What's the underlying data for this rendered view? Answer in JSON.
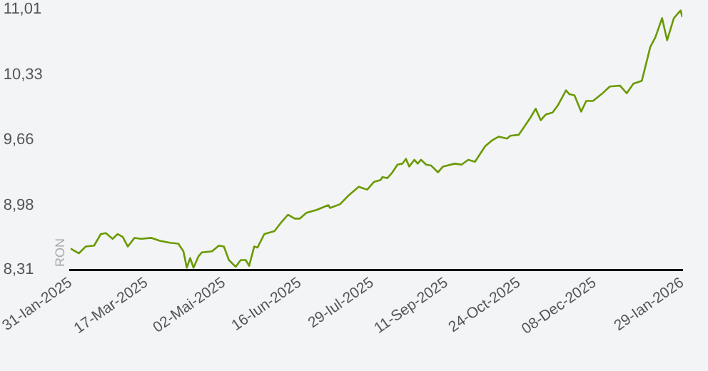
{
  "chart_data": {
    "type": "line",
    "ylabel": "RON",
    "x": [
      "2025-01-31",
      "2025-02-05",
      "2025-02-09",
      "2025-02-14",
      "2025-02-18",
      "2025-02-21",
      "2025-02-25",
      "2025-02-28",
      "2025-03-03",
      "2025-03-06",
      "2025-03-10",
      "2025-03-14",
      "2025-03-20",
      "2025-03-25",
      "2025-03-31",
      "2025-04-05",
      "2025-04-08",
      "2025-04-10",
      "2025-04-12",
      "2025-04-14",
      "2025-04-17",
      "2025-04-19",
      "2025-04-25",
      "2025-04-29",
      "2025-05-02",
      "2025-05-05",
      "2025-05-09",
      "2025-05-12",
      "2025-05-15",
      "2025-05-17",
      "2025-05-20",
      "2025-05-22",
      "2025-05-26",
      "2025-06-01",
      "2025-06-05",
      "2025-06-09",
      "2025-06-13",
      "2025-06-16",
      "2025-06-20",
      "2025-06-26",
      "2025-07-03",
      "2025-07-04",
      "2025-07-10",
      "2025-07-15",
      "2025-07-21",
      "2025-07-26",
      "2025-07-30",
      "2025-08-03",
      "2025-08-04",
      "2025-08-07",
      "2025-08-10",
      "2025-08-13",
      "2025-08-16",
      "2025-08-18",
      "2025-08-20",
      "2025-08-23",
      "2025-08-25",
      "2025-08-27",
      "2025-08-30",
      "2025-09-02",
      "2025-09-06",
      "2025-09-09",
      "2025-09-16",
      "2025-09-20",
      "2025-09-24",
      "2025-09-28",
      "2025-10-04",
      "2025-10-08",
      "2025-10-12",
      "2025-10-17",
      "2025-10-19",
      "2025-10-24",
      "2025-10-26",
      "2025-10-31",
      "2025-11-03",
      "2025-11-06",
      "2025-11-09",
      "2025-11-13",
      "2025-11-16",
      "2025-11-21",
      "2025-11-23",
      "2025-11-26",
      "2025-11-30",
      "2025-12-03",
      "2025-12-07",
      "2025-12-12",
      "2025-12-17",
      "2025-12-23",
      "2025-12-27",
      "2025-12-31",
      "2026-01-05",
      "2026-01-10",
      "2026-01-13",
      "2026-01-17",
      "2026-01-20",
      "2026-01-24",
      "2026-01-28",
      "2026-01-29"
    ],
    "series": [
      {
        "color": "#6a9a00",
        "values": [
          8.53,
          8.48,
          8.55,
          8.56,
          8.68,
          8.69,
          8.63,
          8.68,
          8.65,
          8.55,
          8.64,
          8.63,
          8.64,
          8.61,
          8.59,
          8.58,
          8.5,
          8.33,
          8.43,
          8.33,
          8.45,
          8.49,
          8.5,
          8.56,
          8.55,
          8.41,
          8.34,
          8.41,
          8.41,
          8.35,
          8.55,
          8.54,
          8.68,
          8.71,
          8.8,
          8.88,
          8.84,
          8.84,
          8.9,
          8.93,
          8.98,
          8.95,
          8.99,
          9.08,
          9.17,
          9.14,
          9.22,
          9.24,
          9.27,
          9.26,
          9.32,
          9.4,
          9.41,
          9.46,
          9.38,
          9.45,
          9.41,
          9.45,
          9.4,
          9.39,
          9.32,
          9.38,
          9.41,
          9.4,
          9.45,
          9.43,
          9.59,
          9.65,
          9.69,
          9.67,
          9.7,
          9.71,
          9.76,
          9.89,
          9.98,
          9.86,
          9.92,
          9.94,
          10.01,
          10.17,
          10.13,
          10.12,
          9.95,
          10.06,
          10.06,
          10.13,
          10.21,
          10.22,
          10.14,
          10.24,
          10.27,
          10.62,
          10.72,
          10.92,
          10.69,
          10.92,
          11.0,
          10.93
        ]
      }
    ],
    "xlim": [
      "2025-01-31",
      "2026-01-29"
    ],
    "xticks": [
      {
        "value": "2025-01-31",
        "label": "31-Ian-2025"
      },
      {
        "value": "2025-03-17",
        "label": "17-Mar-2025"
      },
      {
        "value": "2025-05-02",
        "label": "02-Mai-2025"
      },
      {
        "value": "2025-06-16",
        "label": "16-Iun-2025"
      },
      {
        "value": "2025-07-29",
        "label": "29-Iul-2025"
      },
      {
        "value": "2025-09-11",
        "label": "11-Sep-2025"
      },
      {
        "value": "2025-10-24",
        "label": "24-Oct-2025"
      },
      {
        "value": "2025-12-08",
        "label": "08-Dec-2025"
      },
      {
        "value": "2026-01-29",
        "label": "29-Ian-2026"
      }
    ],
    "ylim": [
      8.31,
      11.01
    ],
    "yticks": [
      {
        "value": 8.31,
        "label": "8,31"
      },
      {
        "value": 8.98,
        "label": "8,98"
      },
      {
        "value": 9.66,
        "label": "9,66"
      },
      {
        "value": 10.33,
        "label": "10,33"
      },
      {
        "value": 11.01,
        "label": "11,01"
      }
    ],
    "grid": false,
    "legend": false,
    "marker": "none",
    "line_style": "solid"
  }
}
